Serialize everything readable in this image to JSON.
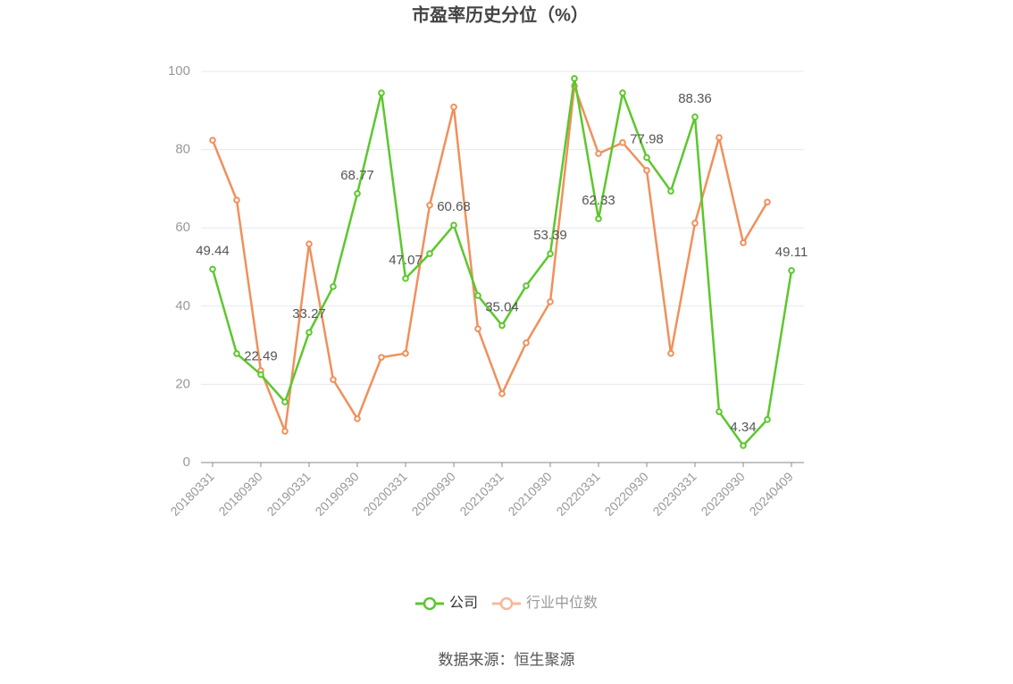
{
  "chart_data": {
    "type": "line",
    "title": "市盈率历史分位（%）",
    "categories": [
      "20180331",
      null,
      "20180930",
      null,
      "20190331",
      null,
      "20190930",
      null,
      "20200331",
      null,
      "20200930",
      null,
      "20210331",
      null,
      "20210930",
      null,
      "20220331",
      null,
      "20220930",
      null,
      "20230331",
      null,
      "20230930",
      null,
      "20240409"
    ],
    "series": [
      {
        "name": "公司",
        "color": "#5cc72d",
        "values": [
          49.44,
          27.85,
          22.49,
          15.5,
          33.27,
          45.0,
          68.77,
          94.5,
          47.07,
          53.4,
          60.68,
          42.7,
          35.04,
          45.2,
          53.39,
          98.2,
          62.33,
          94.5,
          77.98,
          69.4,
          88.36,
          13.0,
          4.34,
          11.0,
          49.11
        ],
        "value_labels": [
          "49.44",
          null,
          "22.49",
          null,
          "33.27",
          null,
          "68.77",
          null,
          "47.07",
          null,
          "60.68",
          null,
          "35.04",
          null,
          "53.39",
          null,
          "62.33",
          null,
          "77.98",
          null,
          "88.36",
          null,
          "4.34",
          null,
          "49.11"
        ]
      },
      {
        "name": "行业中位数",
        "color": "#f0905c",
        "values": [
          82.4,
          67.1,
          23.5,
          8.0,
          55.9,
          21.2,
          11.2,
          26.9,
          27.9,
          65.8,
          90.9,
          34.2,
          17.6,
          30.6,
          41.1,
          96.3,
          79.0,
          81.8,
          74.7,
          27.9,
          61.2,
          83.1,
          56.2,
          66.6,
          null
        ]
      }
    ],
    "ylim": [
      0,
      100
    ],
    "yticks": [
      0,
      20,
      40,
      60,
      80,
      100
    ],
    "grid": true,
    "legend": "bottom",
    "source": "数据来源：恒生聚源"
  }
}
